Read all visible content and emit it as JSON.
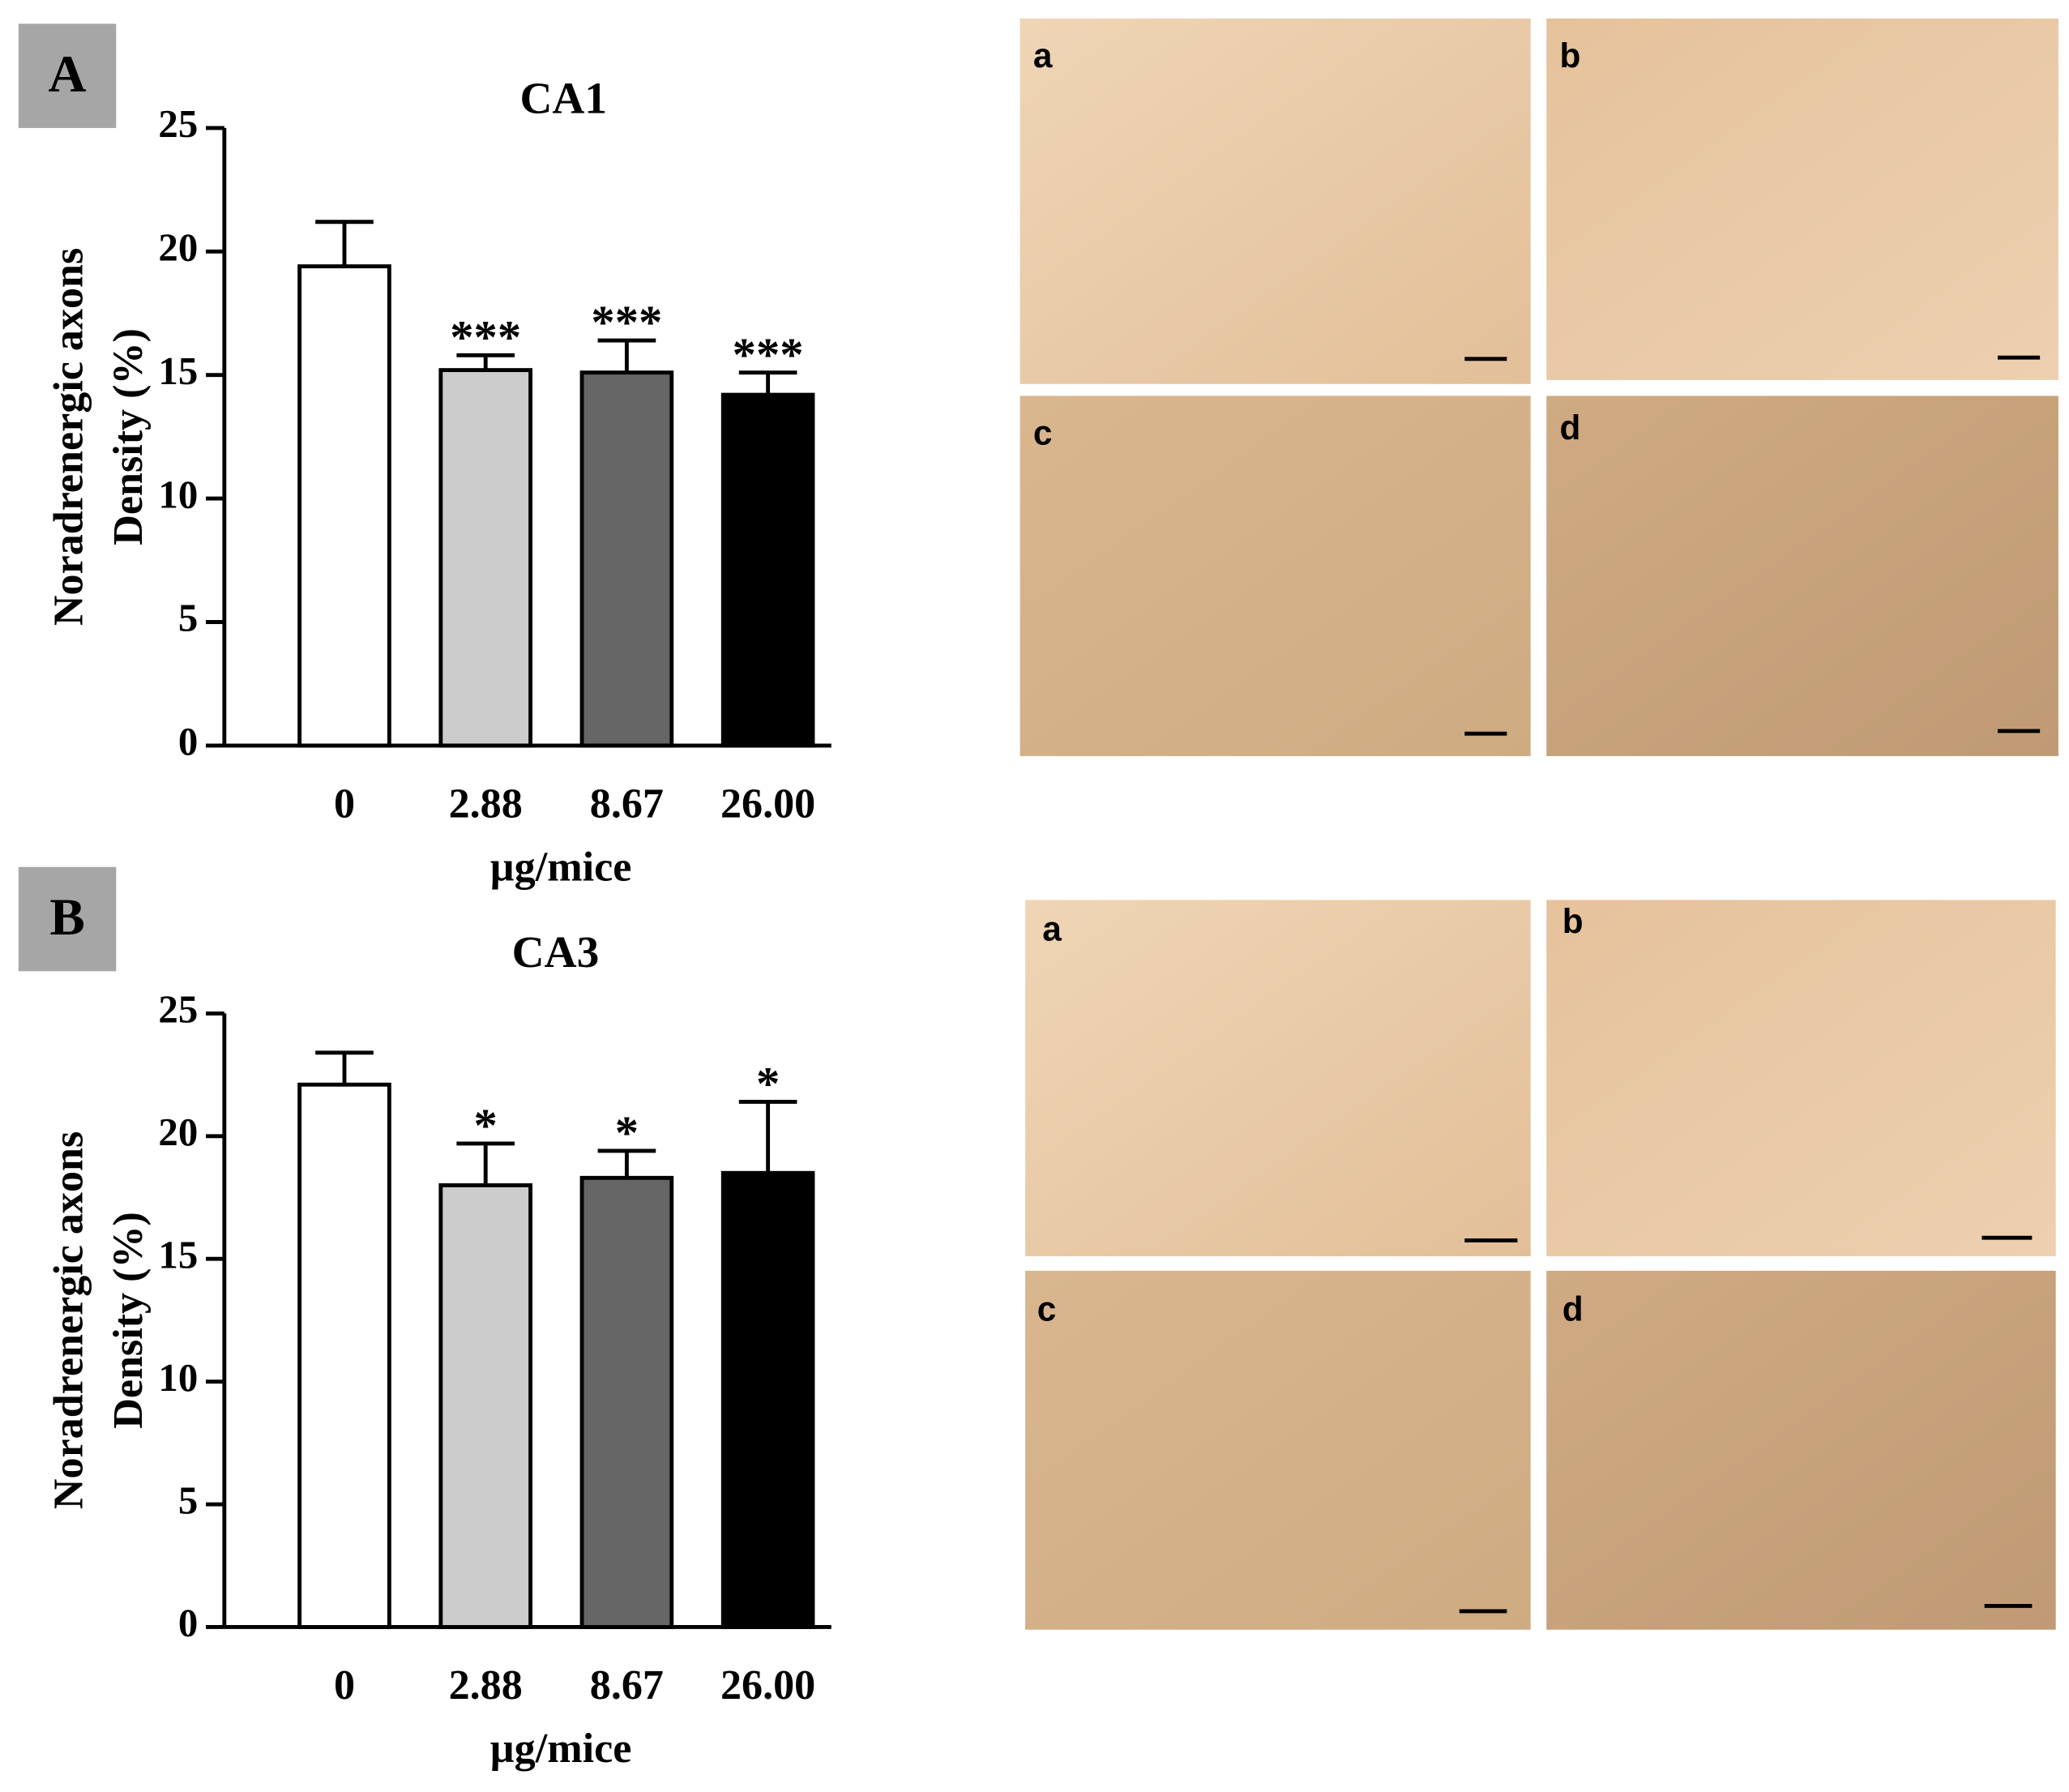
{
  "chart_data": [
    {
      "type": "bar",
      "panel_label": "A",
      "title": "CA1",
      "categories": [
        "0",
        "2.88",
        "8.67",
        "26.00"
      ],
      "values": [
        19.4,
        15.2,
        15.1,
        14.2
      ],
      "errors": [
        1.8,
        0.6,
        1.3,
        0.9
      ],
      "annotations": [
        null,
        "***",
        "***",
        "***"
      ],
      "colors": [
        "#ffffff",
        "#cccccc",
        "#666666",
        "#000000"
      ],
      "x_label": "µg/mice",
      "y_label": [
        "Noradrenergic axons",
        "Density (%)"
      ],
      "ylim": [
        0,
        25
      ],
      "yticks": [
        0,
        5,
        10,
        15,
        20,
        25
      ]
    },
    {
      "type": "bar",
      "panel_label": "B",
      "title": "CA3",
      "categories": [
        "0",
        "2.88",
        "8.67",
        "26.00"
      ],
      "values": [
        22.1,
        18.0,
        18.3,
        18.5
      ],
      "errors": [
        1.3,
        1.7,
        1.1,
        2.9
      ],
      "annotations": [
        null,
        "*",
        "*",
        "*"
      ],
      "colors": [
        "#ffffff",
        "#cccccc",
        "#666666",
        "#000000"
      ],
      "x_label": "µg/mice",
      "y_label": [
        "Noradrenergic axons",
        "Density (%)"
      ],
      "ylim": [
        0,
        25
      ],
      "yticks": [
        0,
        5,
        10,
        15,
        20,
        25
      ]
    }
  ],
  "micrograph_labels": [
    [
      "a",
      "b",
      "c",
      "d"
    ],
    [
      "a",
      "b",
      "c",
      "d"
    ]
  ]
}
